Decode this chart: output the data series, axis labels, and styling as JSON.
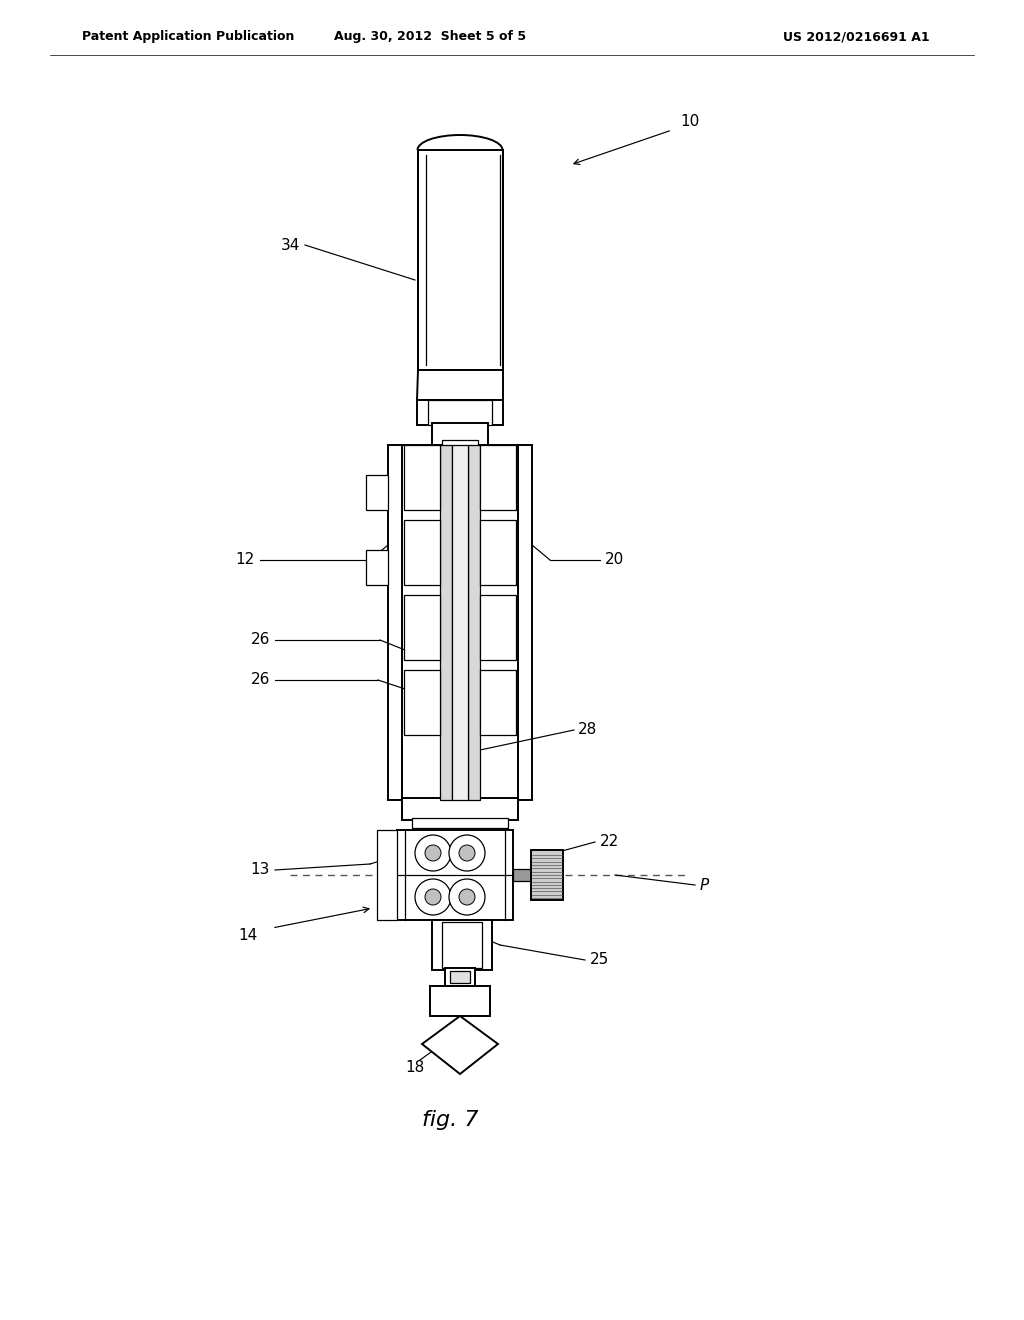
{
  "background_color": "#ffffff",
  "header_left": "Patent Application Publication",
  "header_center": "Aug. 30, 2012  Sheet 5 of 5",
  "header_right": "US 2012/0216691 A1",
  "figure_label": "fig. 7",
  "line_color": "#000000",
  "label_fontsize": 11,
  "header_fontsize": 9,
  "fig_label_fontsize": 16
}
